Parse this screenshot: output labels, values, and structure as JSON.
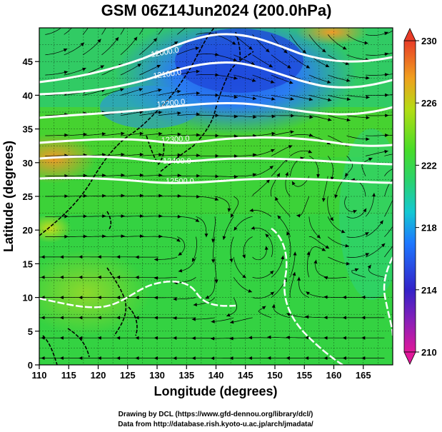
{
  "title": "GSM 06Z14Jun2024 (200.0hPa)",
  "x_axis": {
    "label": "Longitude (degrees)",
    "range": [
      110,
      170
    ],
    "ticks": [
      "110",
      "115",
      "120",
      "125",
      "130",
      "135",
      "140",
      "145",
      "150",
      "155",
      "160",
      "165"
    ]
  },
  "y_axis": {
    "label": "Latitude  (degrees)",
    "range": [
      0,
      50
    ],
    "ticks": [
      "0",
      "5",
      "10",
      "15",
      "20",
      "25",
      "30",
      "35",
      "40",
      "45"
    ]
  },
  "colorbar": {
    "min": 210,
    "max": 230,
    "ticks": [
      "230",
      "226",
      "222",
      "218",
      "214",
      "210"
    ],
    "colors": [
      "#e0189a",
      "#3322c8",
      "#1e78ff",
      "#14c8d2",
      "#2ad26e",
      "#48dc28",
      "#b4dc14",
      "#f0a01e",
      "#e83c28"
    ]
  },
  "contour_labels": [
    "12000.0",
    "12100.0",
    "12200.0",
    "12300.0",
    "12400.0",
    "12500.0"
  ],
  "credits": {
    "line1": "Drawing by DCL (https://www.gfd-dennou.org/library/dcl/)",
    "line2": "Data from http://database.rish.kyoto-u.ac.jp/arch/jmadata/"
  }
}
